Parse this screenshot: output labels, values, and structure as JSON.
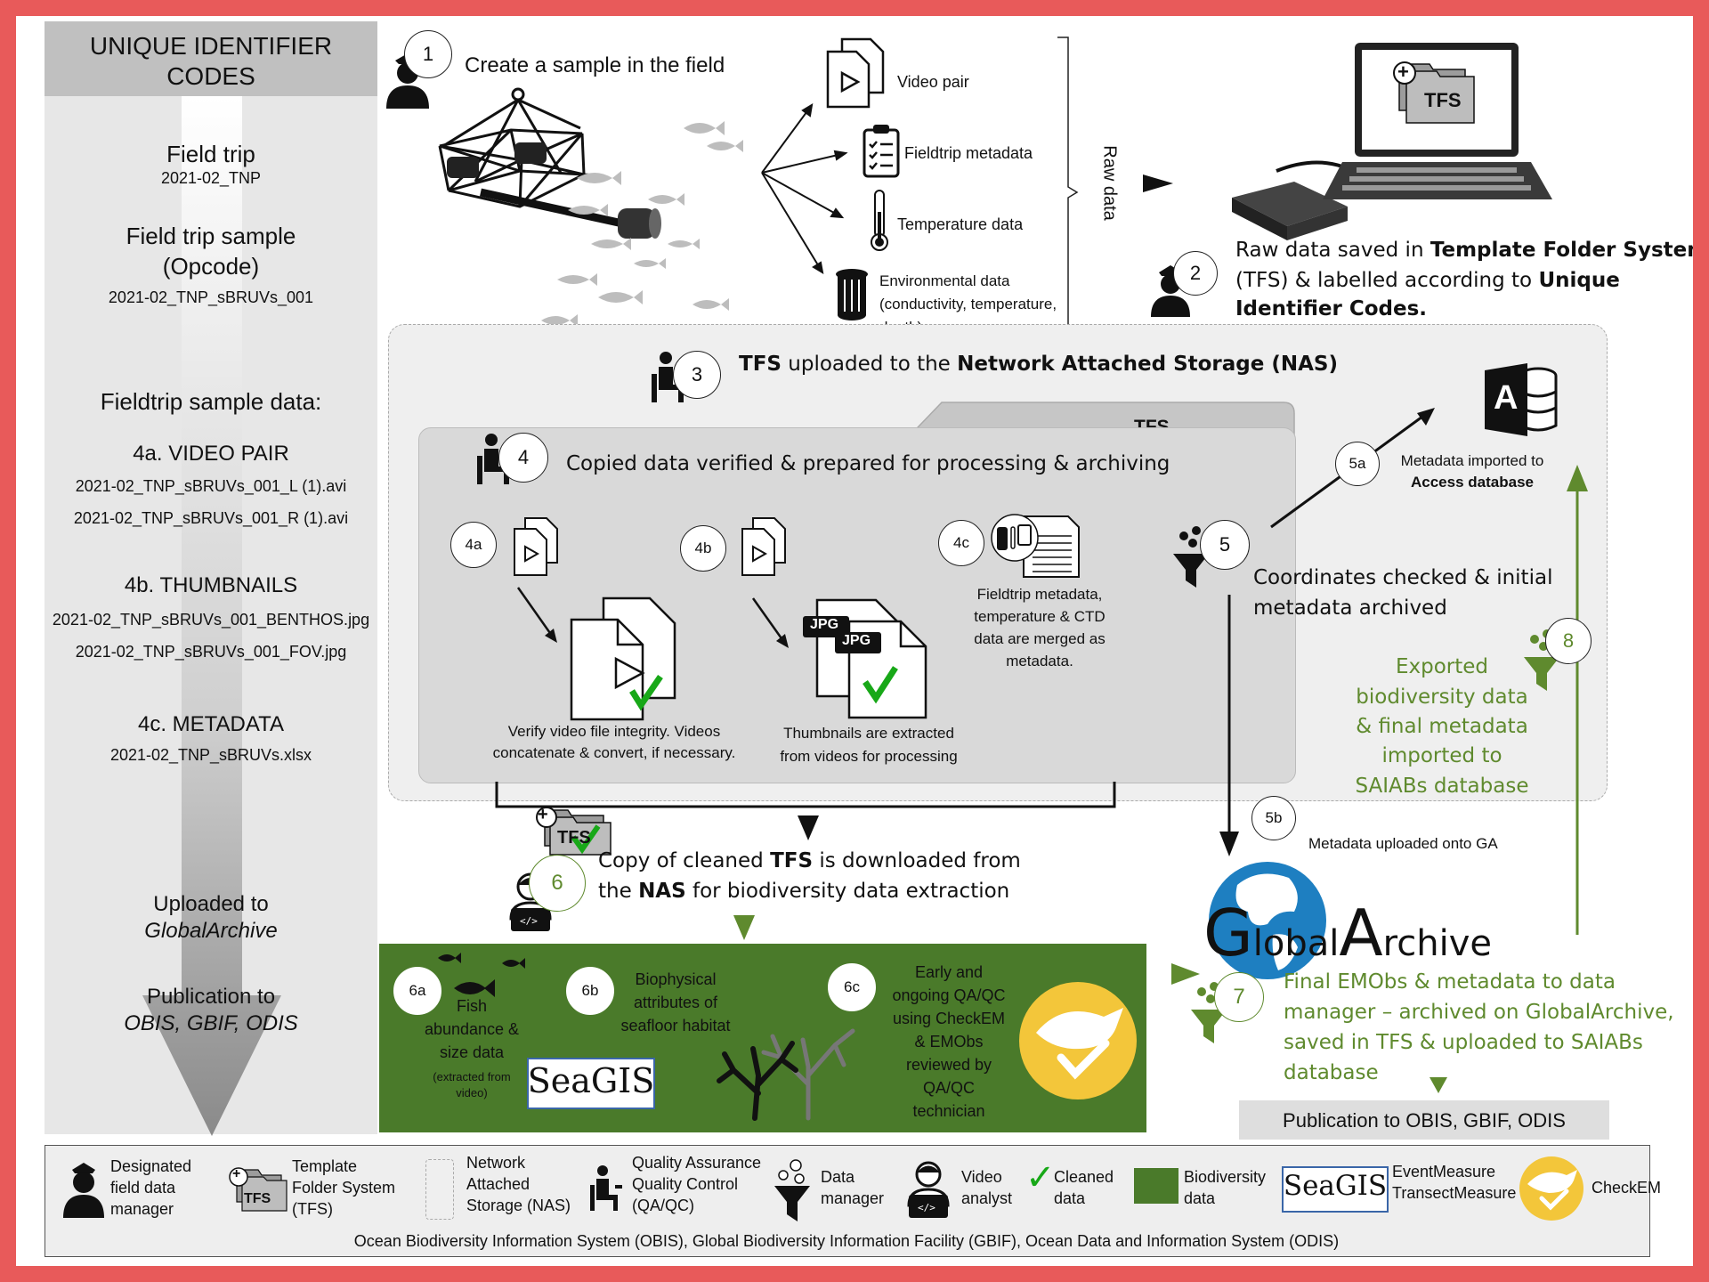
{
  "sidebar": {
    "header": [
      "UNIQUE IDENTIFIER",
      "CODES"
    ],
    "field_trip_label": "Field trip",
    "field_trip_code": "2021-02_TNP",
    "sample_label": [
      "Field trip sample",
      "(Opcode)"
    ],
    "sample_code": "2021-02_TNP_sBRUVs_001",
    "data_heading": "Fieldtrip sample data:",
    "video_heading": "4a. VIDEO PAIR",
    "video_files": [
      "2021-02_TNP_sBRUVs_001_L (1).avi",
      "2021-02_TNP_sBRUVs_001_R (1).avi"
    ],
    "thumb_heading": "4b. THUMBNAILS",
    "thumb_files": [
      "2021-02_TNP_sBRUVs_001_BENTHOS.jpg",
      "2021-02_TNP_sBRUVs_001_FOV.jpg"
    ],
    "meta_heading": "4c. METADATA",
    "meta_file": "2021-02_TNP_sBRUVs.xlsx",
    "uploaded": [
      "Uploaded to",
      "GlobalArchive"
    ],
    "publication": [
      "Publication to",
      "OBIS, GBIF, ODIS"
    ]
  },
  "step1": {
    "num": "1",
    "title": "Create a sample in the field",
    "outputs": [
      "Video pair",
      "Fieldtrip metadata",
      "Temperature data"
    ],
    "env": [
      "Environmental data",
      "(conductivity, temperature,",
      "depth)"
    ],
    "raw": "Raw data"
  },
  "laptop": {
    "tfs": "TFS",
    "plus": "+"
  },
  "step2": {
    "num": "2",
    "line1": {
      "a": "Raw data saved in ",
      "b": "Template Folder System"
    },
    "line2": {
      "a": "(TFS) & labelled according to ",
      "b": "Unique"
    },
    "line3": {
      "b": "Identifier Codes."
    }
  },
  "step3": {
    "num": "3",
    "a": "TFS",
    "b": " uploaded to the ",
    "c": "Network Attached Storage (NAS)"
  },
  "tfs_tab": "TFS",
  "step4": {
    "num": "4",
    "title": "Copied data verified & prepared for processing & archiving",
    "a_num": "4a",
    "b_num": "4b",
    "c_num": "4c",
    "a_caption": [
      "Verify video file integrity. Videos",
      "concatenate & convert, if necessary."
    ],
    "b_caption": [
      "Thumbnails are extracted",
      "from videos for processing"
    ],
    "c_caption": [
      "Fieldtrip metadata,",
      "temperature & CTD",
      "data are merged as",
      "metadata."
    ],
    "jpg": "JPG",
    "check": "✓"
  },
  "step5": {
    "num": "5",
    "text": [
      "Coordinates checked & initial",
      "metadata archived"
    ],
    "a_num": "5a",
    "a_text": [
      "Metadata imported to",
      "Access database"
    ],
    "b_num": "5b",
    "b_text": "Metadata uploaded onto GA",
    "access_letter": "A"
  },
  "step6": {
    "num": "6",
    "line1": {
      "a": "Copy of cleaned ",
      "b": "TFS",
      "c": " is downloaded from"
    },
    "line2": {
      "a": "the ",
      "b": "NAS",
      "c": " for biodiversity data extraction"
    },
    "tfs_icon": "TFS",
    "plus": "+",
    "a_num": "6a",
    "a_text": [
      "Fish",
      "abundance &",
      "size data"
    ],
    "a_small": [
      "(extracted from",
      "video)"
    ],
    "seagis": "SeaGIS",
    "b_num": "6b",
    "b_text": [
      "Biophysical",
      "attributes of",
      "seafloor habitat"
    ],
    "c_num": "6c",
    "c_text": [
      "Early and",
      "ongoing QA/QC",
      "using CheckEM",
      "& EMObs",
      "reviewed by",
      "QA/QC",
      "technician"
    ]
  },
  "step7": {
    "num": "7",
    "text": [
      "Final EMObs & metadata to data",
      "manager – archived on GlobalArchive,",
      "saved in TFS & uploaded to SAIABs",
      "database"
    ],
    "publication": "Publication to OBIS, GBIF, ODIS"
  },
  "step8": {
    "num": "8",
    "text": [
      "Exported",
      "biodiversity data",
      "& final metadata",
      "imported to",
      "SAIABs database"
    ]
  },
  "globalarchive": {
    "g": "G",
    "lobal": "lobal",
    "a": "A",
    "rchive": "rchive"
  },
  "legend": {
    "items": [
      [
        "Designated",
        "field data",
        "manager"
      ],
      [
        "Template",
        "Folder System",
        "(TFS)"
      ],
      [
        "Network",
        "Attached",
        "Storage (NAS)"
      ],
      [
        "Quality Assurance",
        "Quality Control",
        "(QA/QC)"
      ],
      [
        "Data",
        "manager"
      ],
      [
        "Video",
        "analyst"
      ],
      [
        "Cleaned",
        "data"
      ],
      [
        "Biodiversity",
        "data"
      ],
      [
        "EventMeasure",
        "TransectMeasure"
      ],
      [
        "CheckEM"
      ]
    ],
    "tfs": "TFS",
    "plus": "+",
    "check": "✓",
    "seagis": "SeaGIS",
    "footer": "Ocean Biodiversity Information System (OBIS), Global Biodiversity Information Facility (GBIF), Ocean Data and Information System (ODIS)"
  },
  "colors": {
    "border": "#e85a5a",
    "green": "#5f8a2e",
    "dark_green": "#4a7a2a",
    "nas_bg": "#efefef",
    "panel_bg": "#d9d9d9",
    "checkem": "#f3c63a"
  }
}
